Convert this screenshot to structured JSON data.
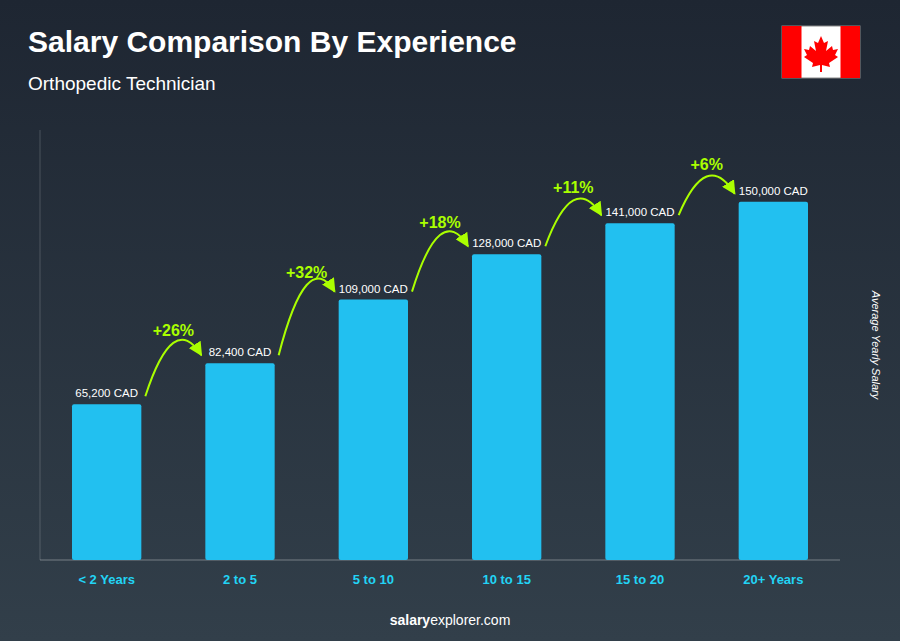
{
  "chart_data": {
    "type": "bar",
    "title": "Salary Comparison By Experience",
    "subtitle": "Orthopedic Technician",
    "ylabel": "Average Yearly Salary",
    "categories": [
      "< 2 Years",
      "2 to 5",
      "5 to 10",
      "10 to 15",
      "15 to 20",
      "20+ Years"
    ],
    "values": [
      65200,
      82400,
      109000,
      128000,
      141000,
      150000
    ],
    "value_labels": [
      "65,200 CAD",
      "82,400 CAD",
      "109,000 CAD",
      "128,000 CAD",
      "141,000 CAD",
      "150,000 CAD"
    ],
    "data_labels": true,
    "annotations": [
      "+26%",
      "+32%",
      "+18%",
      "+11%",
      "+6%"
    ],
    "footer": [
      "salary",
      "explorer.com"
    ],
    "color": "#22c0f0",
    "ylim": [
      0,
      180000
    ],
    "grid": false,
    "tick_labels": "x"
  }
}
